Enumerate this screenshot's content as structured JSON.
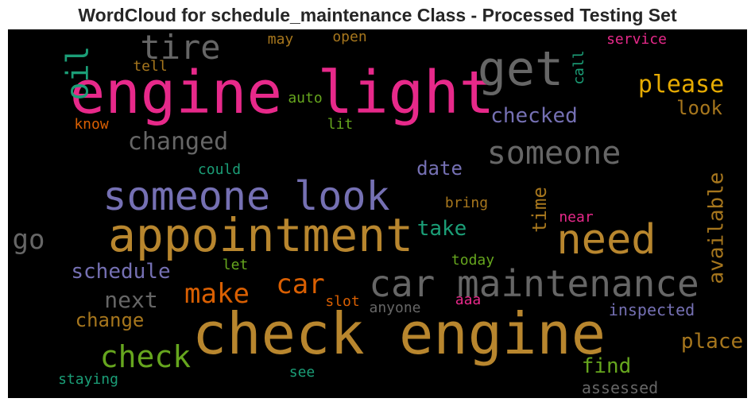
{
  "chart_data": {
    "type": "wordcloud",
    "title": "WordCloud for schedule_maintenance Class - Processed Testing Set",
    "background": "#000000",
    "colors": {
      "pink": "#e7298a",
      "gold": "#b8862e",
      "purple": "#7570b3",
      "gray": "#666666",
      "teal": "#1b9e77",
      "orange": "#d95f02",
      "green": "#66a61e",
      "yellow": "#e6ab02",
      "brown": "#a6761d"
    },
    "words": [
      {
        "text": "engine light",
        "color": "#e7298a",
        "weight": 1.0
      },
      {
        "text": "check engine",
        "color": "#b8862e",
        "weight": 0.95
      },
      {
        "text": "appointment",
        "color": "#b8862e",
        "weight": 0.8
      },
      {
        "text": "someone look",
        "color": "#7570b3",
        "weight": 0.72
      },
      {
        "text": "car maintenance",
        "color": "#666666",
        "weight": 0.68
      },
      {
        "text": "need",
        "color": "#b8862e",
        "weight": 0.68
      },
      {
        "text": "get",
        "color": "#666666",
        "weight": 0.64
      },
      {
        "text": "tire",
        "color": "#666666",
        "weight": 0.55
      },
      {
        "text": "oil",
        "color": "#1b9e77",
        "weight": 0.45
      },
      {
        "text": "someone",
        "color": "#666666",
        "weight": 0.5
      },
      {
        "text": "check",
        "color": "#66a61e",
        "weight": 0.45
      },
      {
        "text": "car",
        "color": "#d95f02",
        "weight": 0.42
      },
      {
        "text": "make",
        "color": "#d95f02",
        "weight": 0.4
      },
      {
        "text": "please",
        "color": "#e6ab02",
        "weight": 0.37
      },
      {
        "text": "changed",
        "color": "#666666",
        "weight": 0.37
      },
      {
        "text": "go",
        "color": "#666666",
        "weight": 0.37
      },
      {
        "text": "next",
        "color": "#666666",
        "weight": 0.34
      },
      {
        "text": "available",
        "color": "#a6761d",
        "weight": 0.34
      },
      {
        "text": "checked",
        "color": "#7570b3",
        "weight": 0.3
      },
      {
        "text": "schedule",
        "color": "#7570b3",
        "weight": 0.3
      },
      {
        "text": "place",
        "color": "#a6761d",
        "weight": 0.3
      },
      {
        "text": "take",
        "color": "#1b9e77",
        "weight": 0.3
      },
      {
        "text": "time",
        "color": "#a6761d",
        "weight": 0.3
      },
      {
        "text": "find",
        "color": "#66a61e",
        "weight": 0.3
      },
      {
        "text": "look",
        "color": "#a6761d",
        "weight": 0.28
      },
      {
        "text": "change",
        "color": "#a6761d",
        "weight": 0.28
      },
      {
        "text": "date",
        "color": "#7570b3",
        "weight": 0.27
      },
      {
        "text": "inspected",
        "color": "#7570b3",
        "weight": 0.22
      },
      {
        "text": "assessed",
        "color": "#666666",
        "weight": 0.22
      },
      {
        "text": "service",
        "color": "#e7298a",
        "weight": 0.2
      },
      {
        "text": "call",
        "color": "#1b9e77",
        "weight": 0.2
      },
      {
        "text": "staying",
        "color": "#1b9e77",
        "weight": 0.2
      },
      {
        "text": "today",
        "color": "#66a61e",
        "weight": 0.2
      },
      {
        "text": "bring",
        "color": "#a6761d",
        "weight": 0.2
      },
      {
        "text": "may",
        "color": "#a6761d",
        "weight": 0.2
      },
      {
        "text": "open",
        "color": "#a6761d",
        "weight": 0.2
      },
      {
        "text": "tell",
        "color": "#a6761d",
        "weight": 0.2
      },
      {
        "text": "auto",
        "color": "#66a61e",
        "weight": 0.2
      },
      {
        "text": "know",
        "color": "#d95f02",
        "weight": 0.2
      },
      {
        "text": "lit",
        "color": "#66a61e",
        "weight": 0.2
      },
      {
        "text": "could",
        "color": "#1b9e77",
        "weight": 0.2
      },
      {
        "text": "near",
        "color": "#e7298a",
        "weight": 0.2
      },
      {
        "text": "let",
        "color": "#66a61e",
        "weight": 0.2
      },
      {
        "text": "slot",
        "color": "#d95f02",
        "weight": 0.2
      },
      {
        "text": "anyone",
        "color": "#666666",
        "weight": 0.2
      },
      {
        "text": "aaa",
        "color": "#e7298a",
        "weight": 0.2
      },
      {
        "text": "see",
        "color": "#1b9e77",
        "weight": 0.2
      }
    ]
  }
}
